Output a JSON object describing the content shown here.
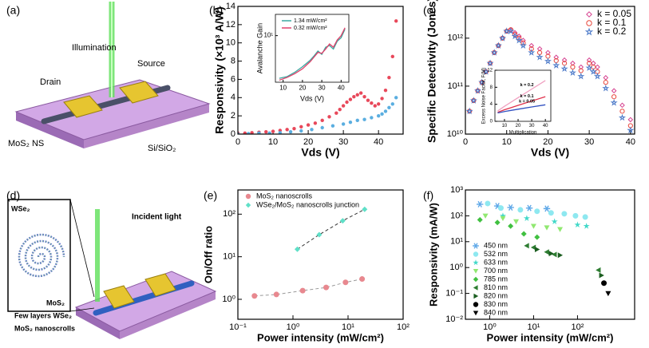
{
  "illustrations": [
    {
      "panel": "(a)",
      "labels": [
        "Illumination",
        "Source",
        "Drain",
        "MoS₂ NS",
        "Si/SiO₂"
      ]
    },
    {
      "panel": "(d)",
      "labels": [
        "WSe₂",
        "MoS₂",
        "Incident light",
        "Few layers WSe₂",
        "MoS₂ nanoscrolls"
      ]
    }
  ],
  "chart_data": [
    {
      "type": "scatter",
      "panel_label": "(b)",
      "xlabel": "Vds (V)",
      "ylabel": "Responsivity (×10³ A/W)",
      "xlim": [
        0,
        47
      ],
      "xticks": [
        0,
        10,
        20,
        30,
        40
      ],
      "ylim": [
        0,
        14
      ],
      "yticks": [
        0,
        2,
        4,
        6,
        8,
        10,
        12,
        14
      ],
      "series": [
        {
          "color": "#e8485a",
          "marker": "circle",
          "x": [
            0,
            2,
            4,
            6,
            8,
            10,
            12,
            14,
            16,
            18,
            20,
            22,
            24,
            26,
            28,
            29,
            30,
            31,
            32,
            33,
            34,
            35,
            36,
            37,
            38,
            39,
            40,
            41,
            42,
            43,
            44,
            45
          ],
          "values": [
            0.1,
            0.1,
            0.15,
            0.2,
            0.25,
            0.3,
            0.4,
            0.5,
            0.6,
            0.8,
            1.0,
            1.2,
            1.5,
            1.9,
            2.3,
            2.7,
            3.1,
            3.5,
            3.8,
            4.1,
            4.3,
            4.5,
            4.1,
            3.7,
            3.4,
            3.1,
            3.3,
            3.9,
            4.8,
            6.2,
            8.5,
            12.4
          ]
        },
        {
          "color": "#5aaee0",
          "marker": "circle",
          "x": [
            0,
            3,
            6,
            9,
            12,
            15,
            18,
            21,
            24,
            27,
            30,
            32,
            34,
            36,
            38,
            40,
            41,
            42,
            43,
            44,
            45
          ],
          "values": [
            0,
            0.05,
            0.1,
            0.1,
            0.15,
            0.25,
            0.35,
            0.5,
            0.7,
            0.9,
            1.1,
            1.3,
            1.5,
            1.6,
            1.8,
            2.0,
            2.2,
            2.5,
            2.9,
            3.3,
            4.0
          ]
        }
      ]
    },
    {
      "type": "line",
      "xlabel": "Vds (V)",
      "ylabel": "Avalanche Gain",
      "xlim": [
        6,
        44
      ],
      "xticks": [
        10,
        20,
        30,
        40
      ],
      "ylim": [
        0.9,
        30
      ],
      "yscale": "log",
      "yticks": [
        {
          "value": 10,
          "label": "10¹"
        }
      ],
      "legend": "upper left",
      "series": [
        {
          "name": "1.34 mW/cm²",
          "color": "#3aa8a0",
          "x": [
            8,
            12,
            16,
            20,
            24,
            26,
            28,
            30,
            32,
            34,
            36,
            38,
            40,
            42
          ],
          "values": [
            1.1,
            1.2,
            1.5,
            2,
            2.8,
            3.5,
            4.5,
            3.8,
            5.5,
            6,
            5,
            7.5,
            9,
            14
          ]
        },
        {
          "name": "0.32 mW/cm²",
          "color": "#e0406a",
          "x": [
            8,
            12,
            16,
            20,
            24,
            26,
            28,
            30,
            32,
            34,
            36,
            38,
            40,
            42
          ],
          "values": [
            1.0,
            1.15,
            1.4,
            1.8,
            2.6,
            3.3,
            4.2,
            4,
            5,
            6.5,
            5.5,
            8,
            10,
            15
          ]
        }
      ]
    },
    {
      "type": "scatter",
      "panel_label": "(c)",
      "xlabel": "Vds (V)",
      "ylabel": "Specific Detectivity (Jones)",
      "xlim": [
        0,
        41
      ],
      "xticks": [
        0,
        10,
        20,
        30,
        40
      ],
      "ylim": [
        10000000000.0,
        4600000000000.0
      ],
      "yscale": "log",
      "yticks": [
        {
          "value": 10000000000.0,
          "label": "10¹⁰"
        },
        {
          "value": 100000000000.0,
          "label": "10¹¹"
        },
        {
          "value": 1000000000000.0,
          "label": "10¹²"
        }
      ],
      "legend": "upper right",
      "hollow": true,
      "series": [
        {
          "name": "k = 0.05",
          "color": "#d6418f",
          "marker": "diamond",
          "x": [
            1,
            2,
            3,
            4,
            5,
            6,
            7,
            8,
            9,
            10,
            11,
            12,
            13,
            14,
            16,
            18,
            20,
            22,
            24,
            26,
            28,
            30,
            31,
            32,
            34,
            36,
            38,
            40
          ],
          "values": [
            30000000000.0,
            50000000000.0,
            80000000000.0,
            120000000000.0,
            200000000000.0,
            300000000000.0,
            500000000000.0,
            700000000000.0,
            1000000000000.0,
            1400000000000.0,
            1500000000000.0,
            1300000000000.0,
            1100000000000.0,
            900000000000.0,
            700000000000.0,
            600000000000.0,
            500000000000.0,
            400000000000.0,
            350000000000.0,
            300000000000.0,
            250000000000.0,
            350000000000.0,
            300000000000.0,
            250000000000.0,
            150000000000.0,
            80000000000.0,
            40000000000.0,
            20000000000.0
          ]
        },
        {
          "name": "k = 0.1",
          "color": "#e8483c",
          "marker": "circle",
          "x": [
            1,
            2,
            3,
            4,
            5,
            6,
            7,
            8,
            9,
            10,
            11,
            12,
            13,
            14,
            16,
            18,
            20,
            22,
            24,
            26,
            28,
            30,
            31,
            32,
            34,
            36,
            38,
            40
          ],
          "values": [
            30000000000.0,
            50000000000.0,
            80000000000.0,
            120000000000.0,
            200000000000.0,
            300000000000.0,
            500000000000.0,
            700000000000.0,
            1000000000000.0,
            1400000000000.0,
            1500000000000.0,
            1200000000000.0,
            1000000000000.0,
            800000000000.0,
            600000000000.0,
            500000000000.0,
            420000000000.0,
            340000000000.0,
            300000000000.0,
            250000000000.0,
            210000000000.0,
            300000000000.0,
            250000000000.0,
            200000000000.0,
            120000000000.0,
            60000000000.0,
            30000000000.0,
            15000000000.0
          ]
        },
        {
          "name": "k = 0.2",
          "color": "#4a78c8",
          "marker": "star",
          "x": [
            1,
            2,
            3,
            4,
            5,
            6,
            7,
            8,
            9,
            10,
            11,
            12,
            13,
            14,
            16,
            18,
            20,
            22,
            24,
            26,
            28,
            30,
            31,
            32,
            34,
            36,
            38,
            40
          ],
          "values": [
            30000000000.0,
            50000000000.0,
            80000000000.0,
            120000000000.0,
            200000000000.0,
            300000000000.0,
            500000000000.0,
            700000000000.0,
            1000000000000.0,
            1400000000000.0,
            1400000000000.0,
            1100000000000.0,
            900000000000.0,
            700000000000.0,
            500000000000.0,
            400000000000.0,
            330000000000.0,
            270000000000.0,
            230000000000.0,
            190000000000.0,
            160000000000.0,
            240000000000.0,
            200000000000.0,
            160000000000.0,
            90000000000.0,
            45000000000.0,
            22000000000.0,
            12000000000.0
          ]
        }
      ]
    },
    {
      "type": "line",
      "xlabel": "Multiplication",
      "ylabel": "Excess Noise Factor, F(M)",
      "xlim": [
        3,
        44
      ],
      "xticks": [
        10,
        20,
        30,
        40
      ],
      "ylim": [
        0,
        12
      ],
      "yticks": [
        0,
        4,
        8,
        12
      ],
      "legend": "inline",
      "series": [
        {
          "name": "k = 0.2",
          "color": "#f0a0c0",
          "x": [
            5,
            10,
            20,
            30,
            40
          ],
          "values": [
            2.44,
            3.52,
            5.56,
            7.57,
            9.58
          ]
        },
        {
          "name": "k = 0.1",
          "color": "#e0304a",
          "x": [
            5,
            10,
            20,
            30,
            40
          ],
          "values": [
            2.12,
            2.71,
            3.76,
            4.77,
            5.78
          ]
        },
        {
          "name": "k = 0.05",
          "color": "#3050c0",
          "x": [
            5,
            10,
            20,
            30,
            40
          ],
          "values": [
            1.96,
            2.305,
            2.85,
            3.37,
            3.88
          ]
        }
      ]
    },
    {
      "type": "scatter",
      "panel_label": "(e)",
      "xlabel": "Power intensity (mW/cm²)",
      "ylabel": "On/Off ratio",
      "xlim": [
        0.1,
        100
      ],
      "xscale": "log",
      "xticks": [
        {
          "value": 0.1,
          "label": "10⁻¹"
        },
        {
          "value": 1,
          "label": "10⁰"
        },
        {
          "value": 10,
          "label": "10¹"
        },
        {
          "value": 100,
          "label": "10²"
        }
      ],
      "ylim": [
        0.34,
        370
      ],
      "yscale": "log",
      "yticks": [
        {
          "value": 1,
          "label": "10⁰"
        },
        {
          "value": 10,
          "label": "10¹"
        },
        {
          "value": 100,
          "label": "10²"
        }
      ],
      "legend": "upper left",
      "linestyle": "dashed",
      "series": [
        {
          "name": "MoS₂ nanoscrolls",
          "color": "#e8888f",
          "line_color": "#999999",
          "marker": "circle",
          "x": [
            0.2,
            0.5,
            1.5,
            4,
            9,
            18
          ],
          "values": [
            1.2,
            1.3,
            1.6,
            1.9,
            2.5,
            3.0
          ]
        },
        {
          "name": "WSe₂/MoS₂ nanoscrolls junction",
          "color": "#5fe0c8",
          "line_color": "#333333",
          "marker": "diamond",
          "x": [
            1.2,
            3,
            8,
            20
          ],
          "values": [
            15,
            33,
            70,
            130
          ]
        }
      ]
    },
    {
      "type": "scatter",
      "panel_label": "(f)",
      "xlabel": "Power intensity (mW/cm²)",
      "ylabel": "Responsivity (mA/W)",
      "xlim": [
        0.28,
        2000
      ],
      "xscale": "log",
      "xticks": [
        {
          "value": 1,
          "label": "10⁰"
        },
        {
          "value": 10,
          "label": "10¹"
        },
        {
          "value": 100,
          "label": "10²"
        }
      ],
      "ylim": [
        0.01,
        1000
      ],
      "yscale": "log",
      "yticks": [
        {
          "value": 0.01,
          "label": "10⁻²"
        },
        {
          "value": 0.1,
          "label": "10⁻¹"
        },
        {
          "value": 1,
          "label": "10⁰"
        },
        {
          "value": 10,
          "label": "10¹"
        },
        {
          "value": 100,
          "label": "10²"
        },
        {
          "value": 1000,
          "label": "10³"
        }
      ],
      "legend": "lower left",
      "series": [
        {
          "name": "450 nm",
          "color": "#5fa8e8",
          "marker": "asterisk",
          "x": [
            0.6,
            1.5,
            3,
            8,
            20
          ],
          "values": [
            280,
            240,
            210,
            200,
            190
          ]
        },
        {
          "name": "532 nm",
          "color": "#8ee8f0",
          "marker": "circle",
          "x": [
            0.9,
            1.8,
            5,
            12,
            25,
            50,
            90,
            150
          ],
          "values": [
            300,
            200,
            170,
            150,
            130,
            120,
            100,
            90
          ]
        },
        {
          "name": "633 nm",
          "color": "#40d8c8",
          "marker": "star",
          "x": [
            2,
            7,
            30,
            100,
            160
          ],
          "values": [
            100,
            80,
            60,
            45,
            40
          ]
        },
        {
          "name": "700 nm",
          "color": "#90e870",
          "marker": "triangle-down",
          "x": [
            0.8,
            2,
            4,
            10,
            20,
            40
          ],
          "values": [
            100,
            80,
            60,
            40,
            35,
            30
          ]
        },
        {
          "name": "785 nm",
          "color": "#40c040",
          "marker": "diamond",
          "x": [
            0.6,
            1.5,
            3,
            6,
            12
          ],
          "values": [
            70,
            55,
            40,
            20,
            15
          ]
        },
        {
          "name": "810 nm",
          "color": "#2e7d32",
          "marker": "triangle-left",
          "x": [
            7,
            10,
            20,
            30,
            300
          ],
          "values": [
            7,
            6,
            4,
            3.2,
            0.8
          ]
        },
        {
          "name": "820 nm",
          "color": "#1b5e20",
          "marker": "triangle-right",
          "x": [
            12,
            25,
            40,
            350
          ],
          "values": [
            5,
            3.5,
            3,
            0.5
          ]
        },
        {
          "name": "830 nm",
          "color": "#000000",
          "marker": "circle",
          "x": [
            400
          ],
          "values": [
            0.25
          ]
        },
        {
          "name": "840 nm",
          "color": "#000000",
          "marker": "triangle-down",
          "x": [
            500
          ],
          "values": [
            0.1
          ]
        }
      ]
    }
  ]
}
